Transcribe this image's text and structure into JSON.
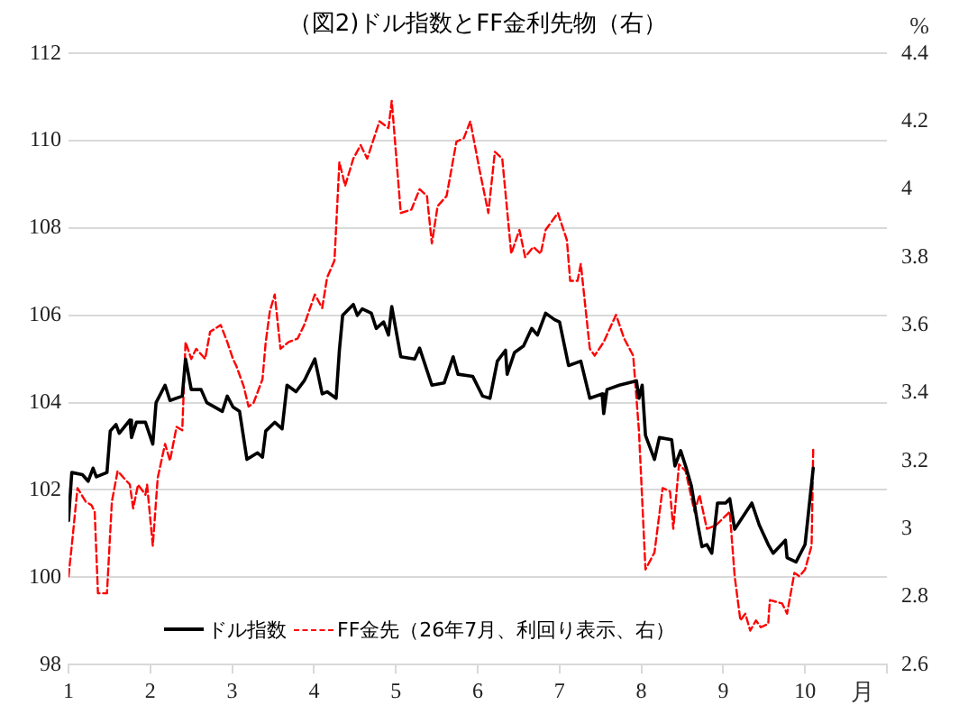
{
  "chart_data": {
    "type": "line",
    "title": "（図2)ドル指数とFF金利先物（右）",
    "xlabel": "月",
    "y2label": "%",
    "xlim": [
      1,
      11
    ],
    "xticks": [
      1,
      2,
      3,
      4,
      5,
      6,
      7,
      8,
      9,
      10,
      {
        "value": 11,
        "label": null
      }
    ],
    "ylim": [
      98,
      112
    ],
    "yticks": [
      98,
      100,
      102,
      104,
      106,
      108,
      110,
      112
    ],
    "y2lim": [
      2.6,
      4.4
    ],
    "y2ticks": [
      2.6,
      2.8,
      3,
      3.2,
      3.4,
      3.6,
      3.8,
      4,
      4.2,
      4.4
    ],
    "grid": "y",
    "legend": "bottom",
    "marker": "none",
    "series": [
      {
        "name": "ドル指数",
        "color": "#000000",
        "line_style": "solid",
        "x": [
          1.0,
          1.04,
          1.17,
          1.24,
          1.3,
          1.34,
          1.47,
          1.51,
          1.58,
          1.62,
          1.75,
          1.77,
          1.83,
          1.94,
          2.03,
          2.07,
          2.18,
          2.24,
          2.39,
          2.43,
          2.5,
          2.62,
          2.69,
          2.88,
          2.94,
          3.01,
          3.09,
          3.18,
          3.31,
          3.37,
          3.41,
          3.52,
          3.61,
          3.67,
          3.78,
          3.88,
          4.01,
          4.1,
          4.16,
          4.27,
          4.31,
          4.35,
          4.48,
          4.53,
          4.59,
          4.7,
          4.76,
          4.85,
          4.91,
          4.95,
          5.06,
          5.23,
          5.29,
          5.44,
          5.59,
          5.7,
          5.76,
          5.94,
          6.06,
          6.15,
          6.24,
          6.34,
          6.36,
          6.45,
          6.56,
          6.66,
          6.73,
          6.83,
          6.94,
          7.0,
          7.11,
          7.26,
          7.37,
          7.52,
          7.54,
          7.58,
          7.73,
          7.94,
          7.97,
          8.01,
          8.05,
          8.16,
          8.22,
          8.37,
          8.41,
          8.48,
          8.54,
          8.61,
          8.69,
          8.74,
          8.8,
          8.86,
          8.93,
          9.03,
          9.08,
          9.14,
          9.35,
          9.44,
          9.55,
          9.61,
          9.76,
          9.78,
          9.89,
          10.0,
          10.1
        ],
        "values": [
          101.3,
          102.4,
          102.35,
          102.2,
          102.5,
          102.3,
          102.4,
          103.35,
          103.5,
          103.3,
          103.6,
          103.2,
          103.55,
          103.55,
          103.05,
          104.0,
          104.4,
          104.05,
          104.15,
          105.0,
          104.3,
          104.3,
          104.0,
          103.8,
          104.15,
          103.9,
          103.8,
          102.7,
          102.85,
          102.75,
          103.35,
          103.55,
          103.4,
          104.4,
          104.25,
          104.5,
          105.0,
          104.2,
          104.25,
          104.1,
          105.2,
          106.0,
          106.25,
          106.0,
          106.15,
          106.05,
          105.7,
          105.85,
          105.55,
          106.2,
          105.05,
          105.0,
          105.25,
          104.4,
          104.45,
          105.05,
          104.65,
          104.6,
          104.15,
          104.1,
          104.95,
          105.2,
          104.65,
          105.15,
          105.3,
          105.7,
          105.55,
          106.05,
          105.9,
          105.85,
          104.85,
          104.95,
          104.1,
          104.2,
          103.75,
          104.3,
          104.4,
          104.5,
          104.1,
          104.4,
          103.25,
          102.7,
          103.2,
          103.15,
          102.55,
          102.9,
          102.55,
          102.1,
          101.2,
          100.7,
          100.75,
          100.55,
          101.7,
          101.7,
          101.8,
          101.1,
          101.7,
          101.2,
          100.75,
          100.55,
          100.85,
          100.45,
          100.35,
          100.75,
          102.5
        ]
      },
      {
        "name": "FF金先（26年7月、利回り表示、右）",
        "color": "#ff0000",
        "line_style": "dashed",
        "axis": "y2",
        "x": [
          1.0,
          1.04,
          1.11,
          1.21,
          1.28,
          1.32,
          1.36,
          1.47,
          1.53,
          1.6,
          1.75,
          1.79,
          1.85,
          1.94,
          1.96,
          2.03,
          2.09,
          2.18,
          2.24,
          2.32,
          2.39,
          2.43,
          2.5,
          2.56,
          2.67,
          2.73,
          2.86,
          2.94,
          3.01,
          3.05,
          3.14,
          3.2,
          3.26,
          3.37,
          3.41,
          3.46,
          3.52,
          3.59,
          3.69,
          3.8,
          3.88,
          4.01,
          4.1,
          4.16,
          4.25,
          4.31,
          4.38,
          4.48,
          4.57,
          4.65,
          4.8,
          4.91,
          4.95,
          5.06,
          5.19,
          5.29,
          5.38,
          5.44,
          5.51,
          5.62,
          5.74,
          5.83,
          5.91,
          6.02,
          6.13,
          6.21,
          6.3,
          6.41,
          6.51,
          6.58,
          6.68,
          6.77,
          6.83,
          6.98,
          7.09,
          7.13,
          7.22,
          7.26,
          7.37,
          7.43,
          7.54,
          7.69,
          7.79,
          7.9,
          7.97,
          8.05,
          8.16,
          8.26,
          8.35,
          8.39,
          8.46,
          8.54,
          8.65,
          8.71,
          8.8,
          8.91,
          9.08,
          9.14,
          9.21,
          9.27,
          9.33,
          9.4,
          9.46,
          9.55,
          9.57,
          9.72,
          9.78,
          9.87,
          9.93,
          10.0,
          10.08,
          10.1
        ],
        "values": [
          2.86,
          2.95,
          3.12,
          3.08,
          3.07,
          3.05,
          2.81,
          2.81,
          3.08,
          3.17,
          3.13,
          3.06,
          3.13,
          3.1,
          3.13,
          2.95,
          3.15,
          3.25,
          3.2,
          3.3,
          3.29,
          3.55,
          3.5,
          3.53,
          3.5,
          3.58,
          3.6,
          3.55,
          3.5,
          3.48,
          3.42,
          3.36,
          3.37,
          3.44,
          3.55,
          3.64,
          3.69,
          3.53,
          3.55,
          3.56,
          3.6,
          3.69,
          3.65,
          3.74,
          3.79,
          4.08,
          4.01,
          4.09,
          4.13,
          4.09,
          4.2,
          4.18,
          4.26,
          3.93,
          3.94,
          4.0,
          3.98,
          3.84,
          3.95,
          3.98,
          4.14,
          4.15,
          4.2,
          4.06,
          3.93,
          4.11,
          4.09,
          3.81,
          3.88,
          3.8,
          3.83,
          3.81,
          3.88,
          3.93,
          3.85,
          3.73,
          3.73,
          3.78,
          3.53,
          3.51,
          3.55,
          3.63,
          3.56,
          3.51,
          3.29,
          2.88,
          2.93,
          3.12,
          3.11,
          3.0,
          3.19,
          3.17,
          3.05,
          3.1,
          3.0,
          3.01,
          3.05,
          2.86,
          2.73,
          2.75,
          2.7,
          2.73,
          2.71,
          2.72,
          2.79,
          2.78,
          2.75,
          2.87,
          2.86,
          2.88,
          2.95,
          3.24
        ]
      }
    ]
  }
}
